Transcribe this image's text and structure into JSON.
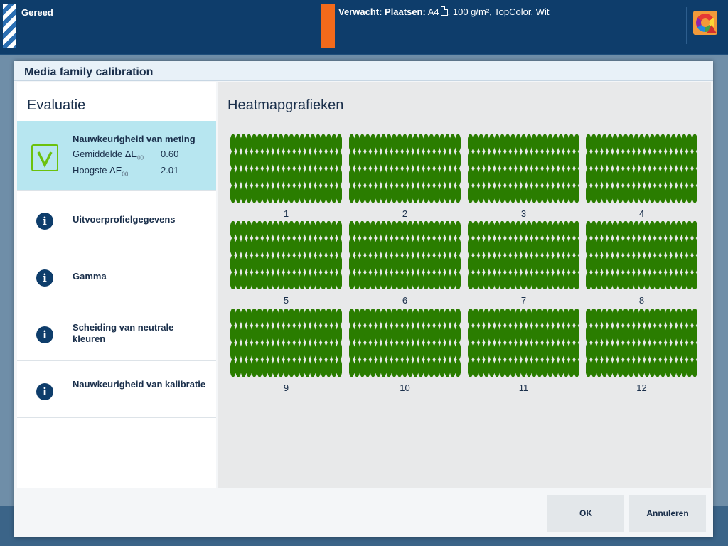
{
  "status_bar": {
    "status": "Gereed",
    "expected_label": "Verwacht: Plaatsen:",
    "media_size": "A4",
    "media_details": ", 100 g/m², TopColor, Wit"
  },
  "dialog": {
    "title": "Media family calibration",
    "evaluation": {
      "heading": "Evaluatie",
      "items": [
        {
          "title": "Nauwkeurigheid van meting",
          "icon": "check-icon",
          "status": "passed",
          "metrics": [
            {
              "label": "Gemiddelde ΔE",
              "subscript": "00",
              "value": "0.60"
            },
            {
              "label": "Hoogste ΔE",
              "subscript": "00",
              "value": "2.01"
            }
          ]
        },
        {
          "title": "Uitvoerprofielgegevens",
          "icon": "info-icon"
        },
        {
          "title": "Gamma",
          "icon": "info-icon"
        },
        {
          "title": "Scheiding van neutrale kleuren",
          "icon": "info-icon"
        },
        {
          "title": "Nauwkeurigheid van kalibratie",
          "icon": "info-icon"
        }
      ]
    },
    "heatmaps": {
      "heading": "Heatmapgrafieken",
      "color": "#2a7d00",
      "labels": [
        "1",
        "2",
        "3",
        "4",
        "5",
        "6",
        "7",
        "8",
        "9",
        "10",
        "11",
        "12"
      ]
    },
    "buttons": {
      "ok": "OK",
      "cancel": "Annuleren"
    }
  }
}
